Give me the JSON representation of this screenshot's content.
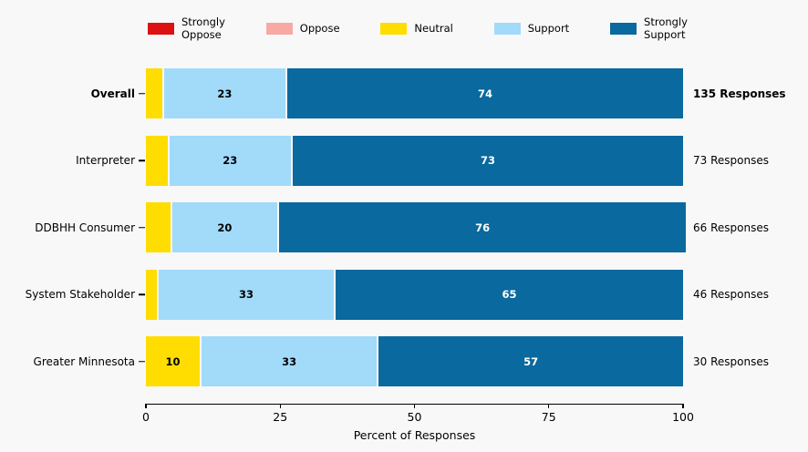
{
  "figure": {
    "background": "#f8f8f8",
    "gap_color": "#f8f8f8"
  },
  "chart_data": {
    "type": "bar",
    "orientation": "horizontal",
    "stacked": true,
    "title": "",
    "xlabel": "Percent of Responses",
    "ylabel": "",
    "xlim": [
      0,
      100
    ],
    "xticks": [
      0,
      25,
      50,
      75,
      100
    ],
    "grid": false,
    "legend_position": "top",
    "bar_label_min": 10,
    "categories": [
      "Overall",
      "Interpreter",
      "DDBHH Consumer",
      "System Stakeholder",
      "Greater Minnesota"
    ],
    "category_emphasis": [
      true,
      false,
      false,
      false,
      false
    ],
    "series": [
      {
        "name": "Strongly Oppose",
        "legend_lines": "Strongly\nOppose",
        "color": "#dc1212",
        "label_color": "#000000",
        "values": [
          0,
          0,
          0,
          0,
          0
        ]
      },
      {
        "name": "Oppose",
        "legend_lines": "Oppose",
        "color": "#f8a9a4",
        "label_color": "#000000",
        "values": [
          0,
          0,
          0,
          0,
          0
        ]
      },
      {
        "name": "Neutral",
        "legend_lines": "Neutral",
        "color": "#ffdd00",
        "label_color": "#000000",
        "values": [
          3,
          4,
          4.5,
          2,
          10
        ]
      },
      {
        "name": "Support",
        "legend_lines": "Support",
        "color": "#a2dafa",
        "label_color": "#000000",
        "values": [
          23,
          23,
          20,
          33,
          33
        ]
      },
      {
        "name": "Strongly Support",
        "legend_lines": "Strongly\nSupport",
        "color": "#0a699e",
        "label_color": "#ffffff",
        "values": [
          74,
          73,
          76,
          65,
          57
        ]
      }
    ],
    "totals": [
      "135 Responses",
      "73 Responses",
      "66 Responses",
      "46 Responses",
      "30 Responses"
    ],
    "totals_emphasis": [
      true,
      false,
      false,
      false,
      false
    ]
  }
}
